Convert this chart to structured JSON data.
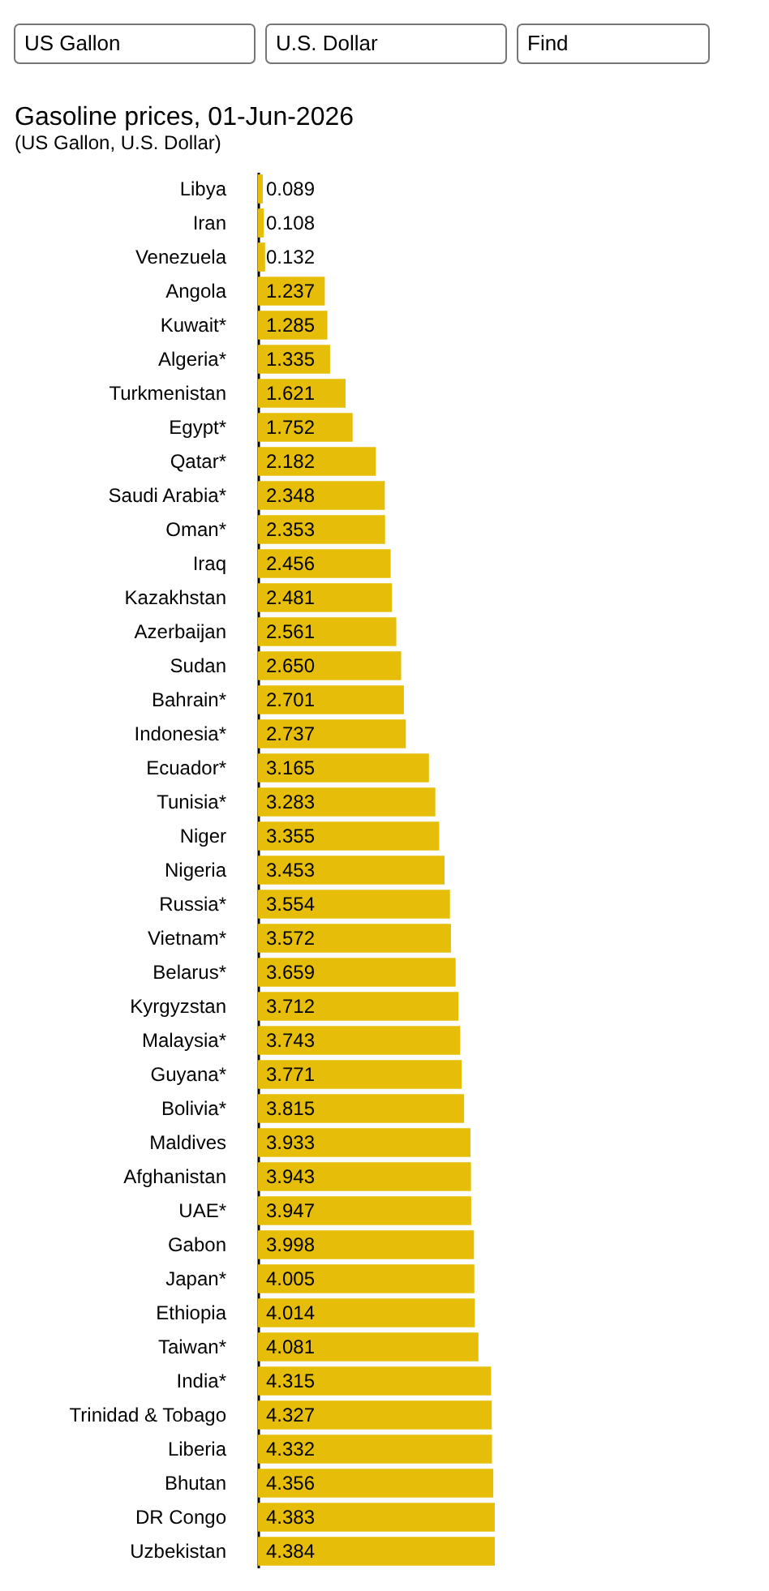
{
  "chart_data": {
    "type": "bar",
    "orientation": "horizontal",
    "title": "Gasoline prices, 01-Jun-2026",
    "subtitle": "(US Gallon, U.S. Dollar)",
    "annotations": [
      "US Gallon",
      "U.S. Dollar",
      "Find"
    ],
    "categories": [
      "Libya",
      "Iran",
      "Venezuela",
      "Angola",
      "Kuwait*",
      "Algeria*",
      "Turkmenistan",
      "Egypt*",
      "Qatar*",
      "Saudi Arabia*",
      "Oman*",
      "Iraq",
      "Kazakhstan",
      "Azerbaijan",
      "Sudan",
      "Bahrain*",
      "Indonesia*",
      "Ecuador*",
      "Tunisia*",
      "Niger",
      "Nigeria",
      "Russia*",
      "Vietnam*",
      "Belarus*",
      "Kyrgyzstan",
      "Malaysia*",
      "Guyana*",
      "Bolivia*",
      "Maldives",
      "Afghanistan",
      "UAE*",
      "Gabon",
      "Japan*",
      "Ethiopia",
      "Taiwan*",
      "India*",
      "Trinidad & Tobago",
      "Liberia",
      "Bhutan",
      "DR Congo",
      "Uzbekistan"
    ],
    "values": [
      0.089,
      0.108,
      0.132,
      1.237,
      1.285,
      1.335,
      1.621,
      1.752,
      2.182,
      2.348,
      2.353,
      2.456,
      2.481,
      2.561,
      2.65,
      2.701,
      2.737,
      3.165,
      3.283,
      3.355,
      3.453,
      3.554,
      3.572,
      3.659,
      3.712,
      3.743,
      3.771,
      3.815,
      3.933,
      3.943,
      3.947,
      3.998,
      4.005,
      4.014,
      4.081,
      4.315,
      4.327,
      4.332,
      4.356,
      4.383,
      4.384
    ],
    "value_labels": [
      "0.089",
      "0.108",
      "0.132",
      "1.237",
      "1.285",
      "1.335",
      "1.621",
      "1.752",
      "2.182",
      "2.348",
      "2.353",
      "2.456",
      "2.481",
      "2.561",
      "2.650",
      "2.701",
      "2.737",
      "3.165",
      "3.283",
      "3.355",
      "3.453",
      "3.554",
      "3.572",
      "3.659",
      "3.712",
      "3.743",
      "3.771",
      "3.815",
      "3.933",
      "3.943",
      "3.947",
      "3.998",
      "4.005",
      "4.014",
      "4.081",
      "4.315",
      "4.327",
      "4.332",
      "4.356",
      "4.383",
      "4.384"
    ],
    "color": "#e6be0a"
  }
}
